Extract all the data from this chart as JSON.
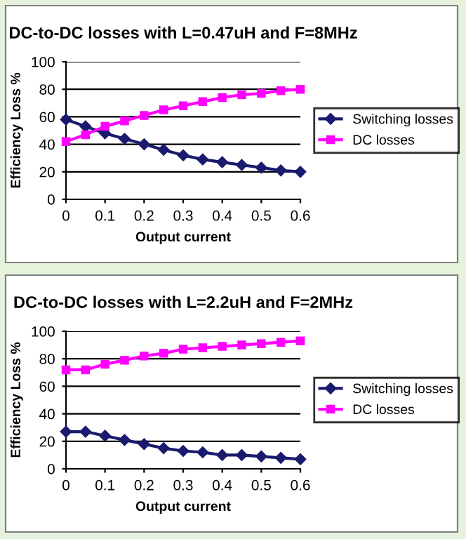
{
  "chart_data": [
    {
      "type": "line",
      "title": "DC-to-DC losses with L=0.47uH and F=8MHz",
      "xlabel": "Output current",
      "ylabel": "Efficiency Loss %",
      "x": [
        0,
        0.05,
        0.1,
        0.15,
        0.2,
        0.25,
        0.3,
        0.35,
        0.4,
        0.45,
        0.5,
        0.55,
        0.6
      ],
      "series": [
        {
          "name": "Switching losses",
          "color": "#1a1a6e",
          "marker": "diamond",
          "values": [
            58,
            53,
            48,
            44,
            40,
            36,
            32,
            29,
            27,
            25,
            23,
            21,
            20
          ]
        },
        {
          "name": "DC losses",
          "color": "#ff00ff",
          "marker": "square",
          "values": [
            42,
            47,
            53,
            57,
            61,
            65,
            68,
            71,
            74,
            76,
            77,
            79,
            80
          ]
        }
      ],
      "xlim": [
        0,
        0.6
      ],
      "xticks": [
        0,
        0.1,
        0.2,
        0.3,
        0.4,
        0.5,
        0.6
      ],
      "ylim": [
        0,
        100
      ],
      "yticks": [
        0,
        20,
        40,
        60,
        80,
        100
      ],
      "grid": "y",
      "legend": "right"
    },
    {
      "type": "line",
      "title": "DC-to-DC losses with L=2.2uH and F=2MHz",
      "xlabel": "Output current",
      "ylabel": "Efficiency Loss %",
      "x": [
        0,
        0.05,
        0.1,
        0.15,
        0.2,
        0.25,
        0.3,
        0.35,
        0.4,
        0.45,
        0.5,
        0.55,
        0.6
      ],
      "series": [
        {
          "name": "Switching losses",
          "color": "#1a1a6e",
          "marker": "diamond",
          "values": [
            27,
            27,
            24,
            21,
            18,
            15,
            13,
            12,
            10,
            10,
            9,
            8,
            7
          ]
        },
        {
          "name": "DC losses",
          "color": "#ff00ff",
          "marker": "square",
          "values": [
            72,
            72,
            76,
            79,
            82,
            84,
            87,
            88,
            89,
            90,
            91,
            92,
            93
          ]
        }
      ],
      "xlim": [
        0,
        0.6
      ],
      "xticks": [
        0,
        0.1,
        0.2,
        0.3,
        0.4,
        0.5,
        0.6
      ],
      "ylim": [
        0,
        100
      ],
      "yticks": [
        0,
        20,
        40,
        60,
        80,
        100
      ],
      "grid": "y",
      "legend": "right"
    }
  ]
}
